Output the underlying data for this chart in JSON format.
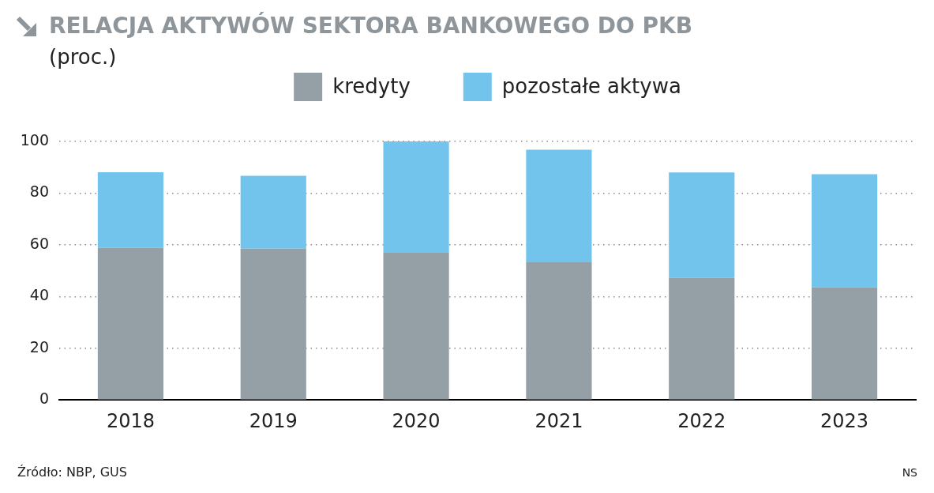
{
  "chart_data": {
    "type": "bar",
    "title": "RELACJA AKTYWÓW SEKTORA BANKOWEGO DO PKB",
    "subtitle": "(proc.)",
    "categories": [
      "2018",
      "2019",
      "2020",
      "2021",
      "2022",
      "2023"
    ],
    "series": [
      {
        "name": "kredyty",
        "color": "#949fa6",
        "values": [
          58.9,
          58.5,
          57.1,
          53.5,
          47.2,
          43.6
        ]
      },
      {
        "name": "pozostałe aktywa",
        "color": "#72c4ec",
        "values": [
          29.2,
          28.2,
          42.9,
          43.3,
          40.8,
          43.7
        ]
      }
    ],
    "stacked": true,
    "ylim": [
      0,
      100
    ],
    "yticks": [
      0,
      20,
      40,
      60,
      80,
      100
    ],
    "grid": "y",
    "legend": "top",
    "annotations": [
      "Źródło: NBP, GUS",
      "NS"
    ]
  }
}
